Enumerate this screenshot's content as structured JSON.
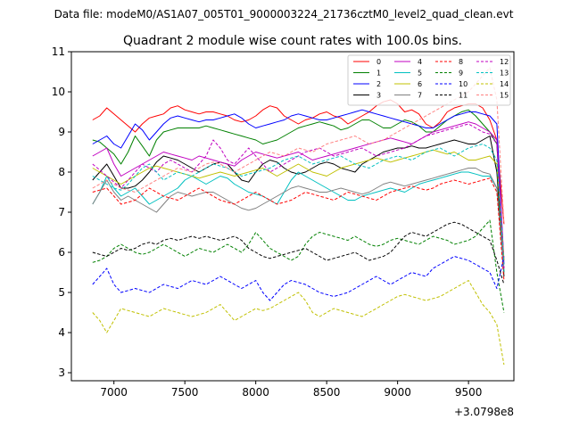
{
  "header": {
    "file_label": "Data file: modeM0/AS1A07_005T01_9000003224_21736cztM0_level2_quad_clean.evt"
  },
  "chart_data": {
    "type": "line",
    "title": "Quadrant 2 module wise count rates with 100.0s bins.",
    "xlabel": "",
    "ylabel": "",
    "x_offset_label": "+3.0798e8",
    "xlim": [
      6700,
      9820
    ],
    "ylim": [
      2.8,
      11
    ],
    "xticks": [
      7000,
      7500,
      8000,
      8500,
      9000,
      9500
    ],
    "xtick_labels": [
      "7000",
      "7500",
      "8000",
      "8500",
      "9000",
      "9500"
    ],
    "yticks": [
      3,
      4,
      5,
      6,
      7,
      8,
      9,
      10,
      11
    ],
    "ytick_labels": [
      "3",
      "4",
      "5",
      "6",
      "7",
      "8",
      "9",
      "10",
      "11"
    ],
    "grid": false,
    "legend_position": "top-right",
    "x": [
      6850,
      6900,
      6950,
      7000,
      7050,
      7100,
      7150,
      7200,
      7250,
      7300,
      7350,
      7400,
      7450,
      7500,
      7550,
      7600,
      7650,
      7700,
      7750,
      7800,
      7850,
      7900,
      7950,
      8000,
      8050,
      8100,
      8150,
      8200,
      8250,
      8300,
      8350,
      8400,
      8450,
      8500,
      8550,
      8600,
      8650,
      8700,
      8750,
      8800,
      8850,
      8900,
      8950,
      9000,
      9050,
      9100,
      9150,
      9200,
      9250,
      9300,
      9350,
      9400,
      9450,
      9500,
      9550,
      9600,
      9650,
      9700,
      9750
    ],
    "series": [
      {
        "name": "0",
        "color": "#ff0000",
        "dash": false,
        "values": [
          9.3,
          9.4,
          9.6,
          9.45,
          9.3,
          9.15,
          9.0,
          9.2,
          9.35,
          9.4,
          9.45,
          9.6,
          9.65,
          9.55,
          9.5,
          9.45,
          9.5,
          9.5,
          9.45,
          9.4,
          9.3,
          9.25,
          9.3,
          9.4,
          9.55,
          9.65,
          9.6,
          9.4,
          9.3,
          9.2,
          9.3,
          9.35,
          9.45,
          9.5,
          9.4,
          9.35,
          9.2,
          9.3,
          9.4,
          9.5,
          9.65,
          9.75,
          9.8,
          9.7,
          9.5,
          9.55,
          9.45,
          9.2,
          9.1,
          9.25,
          9.5,
          9.6,
          9.65,
          9.7,
          9.7,
          9.6,
          9.3,
          8.8,
          6.7
        ]
      },
      {
        "name": "1",
        "color": "#008000",
        "dash": false,
        "values": [
          8.8,
          8.75,
          8.6,
          8.45,
          8.2,
          8.5,
          8.9,
          8.65,
          8.4,
          8.8,
          9.0,
          9.05,
          9.1,
          9.1,
          9.1,
          9.1,
          9.15,
          9.1,
          9.05,
          9.0,
          8.95,
          8.9,
          8.85,
          8.8,
          8.7,
          8.75,
          8.8,
          8.9,
          9.0,
          9.1,
          9.15,
          9.2,
          9.25,
          9.2,
          9.15,
          9.05,
          9.1,
          9.2,
          9.3,
          9.3,
          9.2,
          9.1,
          9.1,
          9.2,
          9.3,
          9.25,
          9.15,
          9.0,
          9.0,
          9.15,
          9.3,
          9.4,
          9.5,
          9.55,
          9.4,
          9.2,
          9.0,
          8.7,
          5.5
        ]
      },
      {
        "name": "2",
        "color": "#0000ff",
        "dash": false,
        "values": [
          8.7,
          8.8,
          8.9,
          8.7,
          8.6,
          8.9,
          9.2,
          9.05,
          8.8,
          9.0,
          9.2,
          9.35,
          9.4,
          9.35,
          9.3,
          9.25,
          9.3,
          9.3,
          9.35,
          9.4,
          9.45,
          9.35,
          9.2,
          9.1,
          9.15,
          9.2,
          9.25,
          9.3,
          9.4,
          9.45,
          9.4,
          9.35,
          9.3,
          9.3,
          9.35,
          9.4,
          9.45,
          9.5,
          9.55,
          9.5,
          9.45,
          9.4,
          9.35,
          9.3,
          9.25,
          9.2,
          9.15,
          9.1,
          9.1,
          9.2,
          9.3,
          9.4,
          9.45,
          9.5,
          9.5,
          9.45,
          9.4,
          9.2,
          5.7
        ]
      },
      {
        "name": "3",
        "color": "#000000",
        "dash": false,
        "values": [
          7.8,
          8.0,
          8.2,
          7.9,
          7.6,
          7.6,
          7.65,
          7.8,
          8.0,
          8.25,
          8.4,
          8.35,
          8.3,
          8.2,
          8.1,
          8.0,
          8.1,
          8.2,
          8.25,
          8.2,
          8.0,
          7.8,
          7.75,
          8.0,
          8.2,
          8.3,
          8.25,
          8.1,
          8.0,
          7.95,
          8.0,
          8.1,
          8.2,
          8.25,
          8.2,
          8.1,
          8.05,
          8.0,
          8.2,
          8.3,
          8.4,
          8.5,
          8.55,
          8.6,
          8.6,
          8.65,
          8.6,
          8.6,
          8.65,
          8.7,
          8.75,
          8.8,
          8.75,
          8.7,
          8.7,
          8.8,
          8.9,
          8.0,
          5.4
        ]
      },
      {
        "name": "4",
        "color": "#c000c0",
        "dash": false,
        "values": [
          8.4,
          8.5,
          8.6,
          8.2,
          7.9,
          8.0,
          8.1,
          8.2,
          8.3,
          8.4,
          8.5,
          8.45,
          8.4,
          8.35,
          8.3,
          8.4,
          8.35,
          8.3,
          8.25,
          8.2,
          8.15,
          8.3,
          8.4,
          8.5,
          8.45,
          8.4,
          8.35,
          8.4,
          8.45,
          8.5,
          8.4,
          8.3,
          8.35,
          8.4,
          8.45,
          8.5,
          8.55,
          8.6,
          8.65,
          8.7,
          8.75,
          8.8,
          8.85,
          8.8,
          8.75,
          8.7,
          8.8,
          8.9,
          9.0,
          9.05,
          9.1,
          9.15,
          9.2,
          9.25,
          9.2,
          9.1,
          9.0,
          8.8,
          5.8
        ]
      },
      {
        "name": "5",
        "color": "#00c0c0",
        "dash": false,
        "values": [
          7.2,
          7.5,
          7.9,
          7.6,
          7.4,
          7.5,
          7.6,
          7.4,
          7.2,
          7.3,
          7.4,
          7.5,
          7.6,
          7.8,
          7.9,
          7.8,
          7.7,
          7.8,
          7.9,
          7.85,
          7.7,
          7.6,
          7.5,
          7.45,
          7.4,
          7.3,
          7.2,
          7.5,
          7.8,
          8.0,
          7.9,
          7.8,
          7.7,
          7.6,
          7.5,
          7.4,
          7.3,
          7.3,
          7.4,
          7.45,
          7.5,
          7.55,
          7.6,
          7.55,
          7.5,
          7.6,
          7.7,
          7.75,
          7.8,
          7.85,
          7.9,
          7.95,
          8.0,
          8.0,
          7.95,
          7.9,
          7.9,
          7.6,
          5.5
        ]
      },
      {
        "name": "6",
        "color": "#c0c000",
        "dash": false,
        "values": [
          8.1,
          8.0,
          7.9,
          7.8,
          7.7,
          7.8,
          7.9,
          8.0,
          8.1,
          8.15,
          8.1,
          8.05,
          8.0,
          7.95,
          7.9,
          7.85,
          7.9,
          7.95,
          8.0,
          7.95,
          7.9,
          7.95,
          8.0,
          8.05,
          8.1,
          8.0,
          7.9,
          8.0,
          8.1,
          8.2,
          8.1,
          8.0,
          7.95,
          7.9,
          8.0,
          8.1,
          8.15,
          8.2,
          8.25,
          8.3,
          8.35,
          8.3,
          8.25,
          8.3,
          8.35,
          8.4,
          8.45,
          8.5,
          8.55,
          8.5,
          8.45,
          8.5,
          8.4,
          8.3,
          8.3,
          8.35,
          8.4,
          8.2,
          5.8
        ]
      },
      {
        "name": "7",
        "color": "#808080",
        "dash": false,
        "values": [
          7.2,
          7.5,
          7.8,
          7.5,
          7.3,
          7.4,
          7.3,
          7.2,
          7.1,
          7.0,
          7.2,
          7.4,
          7.5,
          7.45,
          7.4,
          7.45,
          7.5,
          7.5,
          7.4,
          7.3,
          7.2,
          7.1,
          7.05,
          7.1,
          7.2,
          7.3,
          7.4,
          7.5,
          7.6,
          7.65,
          7.6,
          7.55,
          7.5,
          7.5,
          7.55,
          7.6,
          7.55,
          7.5,
          7.45,
          7.5,
          7.6,
          7.7,
          7.75,
          7.7,
          7.65,
          7.7,
          7.75,
          7.8,
          7.85,
          7.9,
          7.95,
          8.0,
          8.05,
          8.1,
          8.1,
          8.0,
          7.95,
          7.6,
          5.6
        ]
      },
      {
        "name": "8",
        "color": "#ff0000",
        "dash": true,
        "values": [
          7.5,
          7.55,
          7.6,
          7.4,
          7.2,
          7.25,
          7.3,
          7.45,
          7.6,
          7.5,
          7.4,
          7.35,
          7.3,
          7.4,
          7.5,
          7.6,
          7.5,
          7.4,
          7.3,
          7.25,
          7.2,
          7.3,
          7.4,
          7.5,
          7.4,
          7.3,
          7.2,
          7.25,
          7.3,
          7.4,
          7.5,
          7.45,
          7.4,
          7.35,
          7.3,
          7.4,
          7.5,
          7.45,
          7.4,
          7.35,
          7.3,
          7.4,
          7.5,
          7.55,
          7.6,
          7.65,
          7.6,
          7.55,
          7.6,
          7.7,
          7.75,
          7.8,
          7.75,
          7.7,
          7.75,
          7.8,
          7.85,
          7.5,
          5.3
        ]
      },
      {
        "name": "9",
        "color": "#008000",
        "dash": true,
        "values": [
          5.75,
          5.8,
          5.9,
          6.1,
          6.2,
          6.1,
          6.0,
          5.95,
          6.0,
          6.1,
          6.2,
          6.1,
          6.0,
          5.9,
          6.0,
          6.1,
          6.05,
          6.0,
          6.1,
          6.2,
          6.1,
          6.0,
          6.2,
          6.5,
          6.3,
          6.1,
          6.0,
          5.9,
          5.8,
          5.9,
          6.2,
          6.4,
          6.5,
          6.45,
          6.4,
          6.35,
          6.3,
          6.4,
          6.3,
          6.2,
          6.15,
          6.2,
          6.3,
          6.35,
          6.3,
          6.25,
          6.2,
          6.3,
          6.4,
          6.35,
          6.3,
          6.2,
          6.25,
          6.3,
          6.4,
          6.6,
          6.8,
          5.5,
          4.5
        ]
      },
      {
        "name": "10",
        "color": "#0000ff",
        "dash": true,
        "values": [
          5.2,
          5.4,
          5.6,
          5.2,
          5.0,
          5.05,
          5.1,
          5.05,
          5.0,
          5.1,
          5.2,
          5.15,
          5.1,
          5.2,
          5.3,
          5.25,
          5.2,
          5.3,
          5.4,
          5.3,
          5.2,
          5.1,
          5.2,
          5.3,
          5.0,
          4.8,
          5.0,
          5.2,
          5.3,
          5.25,
          5.2,
          5.1,
          5.0,
          4.95,
          4.9,
          4.95,
          5.0,
          5.1,
          5.2,
          5.3,
          5.4,
          5.3,
          5.2,
          5.3,
          5.4,
          5.5,
          5.45,
          5.4,
          5.6,
          5.7,
          5.8,
          5.9,
          5.85,
          5.8,
          5.7,
          5.6,
          5.5,
          5.1,
          5.9
        ]
      },
      {
        "name": "11",
        "color": "#000000",
        "dash": true,
        "values": [
          6.0,
          5.95,
          5.9,
          6.0,
          6.1,
          6.05,
          6.1,
          6.2,
          6.25,
          6.2,
          6.3,
          6.35,
          6.3,
          6.35,
          6.4,
          6.35,
          6.4,
          6.35,
          6.3,
          6.35,
          6.4,
          6.3,
          6.1,
          6.0,
          5.9,
          5.85,
          5.9,
          5.95,
          6.0,
          6.05,
          6.1,
          6.0,
          5.9,
          5.8,
          5.85,
          5.9,
          5.95,
          6.0,
          5.9,
          5.8,
          5.85,
          5.9,
          6.0,
          6.2,
          6.4,
          6.5,
          6.45,
          6.4,
          6.5,
          6.6,
          6.7,
          6.75,
          6.7,
          6.6,
          6.5,
          6.4,
          6.3,
          5.8,
          5.2
        ]
      },
      {
        "name": "12",
        "color": "#c000c0",
        "dash": true,
        "values": [
          8.2,
          8.05,
          7.9,
          7.75,
          7.6,
          7.8,
          8.0,
          8.2,
          8.1,
          8.0,
          8.2,
          8.3,
          8.2,
          8.1,
          8.0,
          8.2,
          8.4,
          8.8,
          8.6,
          8.3,
          8.2,
          8.4,
          8.6,
          8.4,
          8.2,
          8.0,
          8.1,
          8.2,
          8.3,
          8.4,
          8.5,
          8.55,
          8.6,
          8.5,
          8.4,
          8.45,
          8.5,
          8.55,
          8.6,
          8.5,
          8.4,
          8.45,
          8.5,
          8.55,
          8.6,
          8.7,
          8.8,
          8.9,
          8.95,
          9.0,
          9.05,
          9.1,
          9.15,
          9.2,
          9.1,
          9.0,
          8.95,
          8.7,
          5.6
        ]
      },
      {
        "name": "13",
        "color": "#00c0c0",
        "dash": true,
        "values": [
          7.9,
          7.8,
          7.7,
          7.6,
          7.55,
          7.7,
          7.9,
          8.1,
          8.2,
          8.0,
          7.8,
          7.9,
          8.0,
          7.95,
          7.9,
          8.0,
          8.1,
          8.2,
          8.15,
          8.1,
          8.0,
          7.9,
          7.95,
          8.0,
          8.05,
          8.1,
          8.2,
          8.3,
          8.35,
          8.4,
          8.3,
          8.2,
          8.25,
          8.3,
          8.35,
          8.4,
          8.3,
          8.2,
          8.15,
          8.1,
          8.2,
          8.3,
          8.35,
          8.4,
          8.35,
          8.3,
          8.4,
          8.5,
          8.55,
          8.6,
          8.5,
          8.4,
          8.5,
          8.6,
          8.65,
          8.7,
          8.6,
          8.3,
          5.7
        ]
      },
      {
        "name": "14",
        "color": "#c0c000",
        "dash": true,
        "values": [
          4.5,
          4.3,
          4.0,
          4.3,
          4.6,
          4.55,
          4.5,
          4.45,
          4.4,
          4.5,
          4.6,
          4.55,
          4.5,
          4.45,
          4.4,
          4.45,
          4.5,
          4.6,
          4.7,
          4.5,
          4.3,
          4.4,
          4.5,
          4.6,
          4.55,
          4.6,
          4.7,
          4.8,
          4.9,
          5.0,
          4.8,
          4.5,
          4.4,
          4.5,
          4.6,
          4.55,
          4.5,
          4.45,
          4.4,
          4.5,
          4.6,
          4.7,
          4.8,
          4.9,
          4.95,
          4.9,
          4.85,
          4.8,
          4.85,
          4.9,
          5.0,
          5.1,
          5.2,
          5.3,
          5.0,
          4.7,
          4.5,
          4.2,
          3.2
        ]
      },
      {
        "name": "15",
        "color": "#ff8080",
        "dash": true,
        "values": [
          7.6,
          7.7,
          7.8,
          7.7,
          7.6,
          7.55,
          7.5,
          7.6,
          7.7,
          7.8,
          7.9,
          8.0,
          8.1,
          8.05,
          8.0,
          8.1,
          8.2,
          8.25,
          8.2,
          8.1,
          8.0,
          8.1,
          8.2,
          8.3,
          8.4,
          8.5,
          8.45,
          8.4,
          8.5,
          8.6,
          8.55,
          8.5,
          8.6,
          8.7,
          8.75,
          8.8,
          8.85,
          8.9,
          8.8,
          8.7,
          8.75,
          8.8,
          8.9,
          9.0,
          9.1,
          9.2,
          9.3,
          9.4,
          9.5,
          9.6,
          9.7,
          9.8,
          9.9,
          10.0,
          10.2,
          10.4,
          10.6,
          9.8,
          6.7
        ]
      }
    ]
  }
}
